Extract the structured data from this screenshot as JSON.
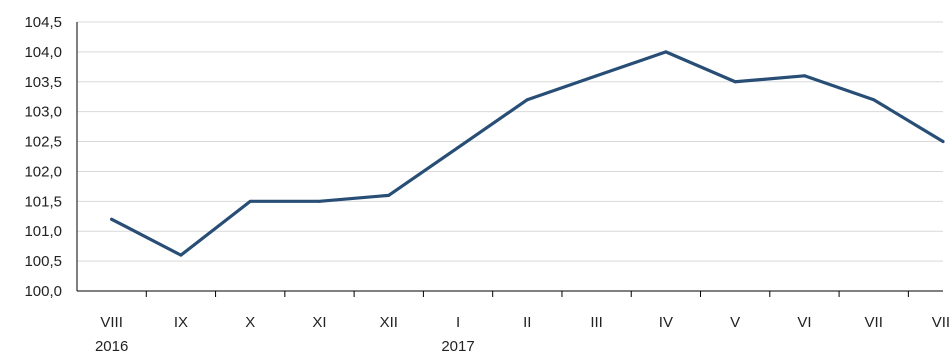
{
  "chart_data": {
    "type": "line",
    "categories": [
      "VIII",
      "IX",
      "X",
      "XI",
      "XII",
      "I",
      "II",
      "III",
      "IV",
      "V",
      "VI",
      "VII",
      "VIII"
    ],
    "year_labels": [
      {
        "index": 0,
        "text": "2016"
      },
      {
        "index": 5,
        "text": "2017"
      }
    ],
    "series": [
      {
        "values": [
          101.2,
          100.6,
          101.5,
          101.5,
          101.6,
          102.4,
          103.2,
          103.6,
          104.0,
          103.5,
          103.6,
          103.2,
          102.5
        ]
      }
    ],
    "yticks": [
      "100,0",
      "100,5",
      "101,0",
      "101,5",
      "102,0",
      "102,5",
      "103,0",
      "103,5",
      "104,0",
      "104,5"
    ],
    "ylim": [
      100.0,
      104.5
    ],
    "ytick_step": 0.5,
    "grid": true,
    "legend": "none",
    "title": "",
    "xlabel": "",
    "ylabel": "",
    "colors": {
      "line": "#284e76",
      "grid": "#d9d9d9",
      "axis": "#000000"
    }
  }
}
